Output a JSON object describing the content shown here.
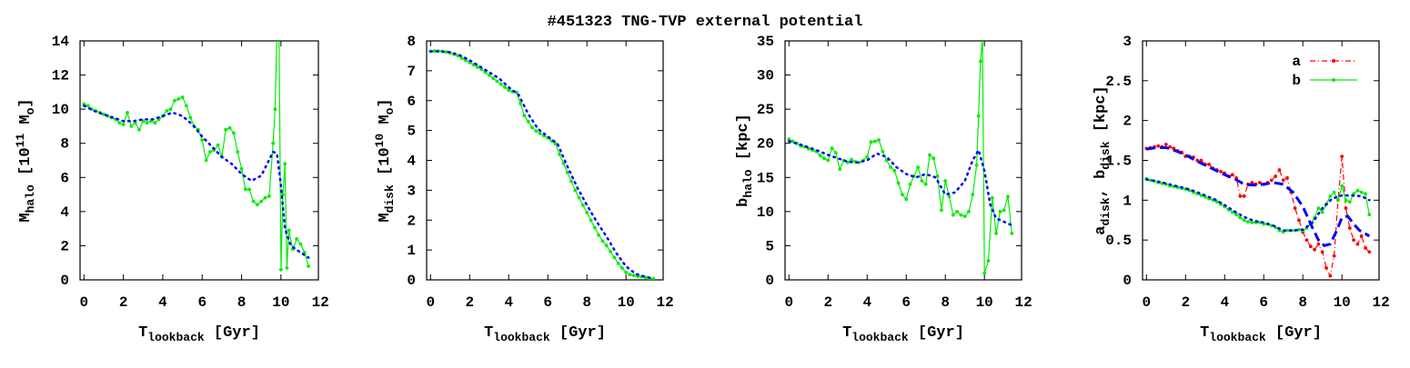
{
  "title": "#451323 TNG-TVP external potential",
  "chart_data": [
    {
      "type": "line",
      "xlabel": "T",
      "xlabel_sub": "lookback",
      "xlabel_unit": " [Gyr]",
      "ylabel": "M",
      "ylabel_sub": "halo",
      "ylabel_unit_pre": " [10",
      "ylabel_sup": "11",
      "ylabel_unit_post": " M",
      "ylabel_sub2": "o",
      "ylabel_close": "]",
      "xlim": [
        -0.2,
        11.9
      ],
      "ylim": [
        0,
        14
      ],
      "xticks": [
        "0",
        "2",
        "4",
        "6",
        "8",
        "10",
        "12"
      ],
      "yticks": [
        "0",
        "2",
        "4",
        "6",
        "8",
        "10",
        "12",
        "14"
      ],
      "series": [
        {
          "color": "#00ee00",
          "style": "solid-points",
          "x": [
            0,
            0.2,
            0.4,
            0.6,
            0.8,
            1.0,
            1.2,
            1.4,
            1.6,
            1.8,
            2.0,
            2.2,
            2.4,
            2.6,
            2.8,
            3.0,
            3.2,
            3.4,
            3.6,
            3.8,
            4.0,
            4.2,
            4.4,
            4.6,
            4.8,
            5.0,
            5.2,
            5.4,
            5.6,
            5.8,
            6.0,
            6.2,
            6.4,
            6.6,
            6.8,
            7.0,
            7.2,
            7.4,
            7.6,
            7.8,
            8.0,
            8.2,
            8.4,
            8.6,
            8.8,
            9.0,
            9.2,
            9.4,
            9.6,
            9.7,
            9.8,
            9.9,
            10.0,
            10.1,
            10.2,
            10.3,
            10.4,
            10.6,
            10.8,
            11.0,
            11.2,
            11.4
          ],
          "y": [
            10.3,
            10.2,
            10.0,
            9.9,
            9.8,
            9.7,
            9.6,
            9.5,
            9.4,
            9.2,
            9.1,
            9.8,
            9.0,
            9.2,
            8.8,
            9.3,
            9.2,
            9.3,
            9.2,
            9.4,
            9.6,
            9.9,
            10.0,
            10.5,
            10.6,
            10.7,
            10.2,
            9.5,
            9.0,
            8.8,
            8.2,
            7.0,
            7.5,
            7.6,
            7.9,
            7.2,
            8.8,
            8.9,
            8.6,
            7.5,
            6.5,
            5.3,
            5.3,
            4.6,
            4.4,
            4.6,
            4.8,
            4.9,
            8.0,
            10.0,
            14.5,
            14.5,
            0.6,
            5.0,
            6.8,
            0.7,
            2.9,
            1.8,
            2.4,
            2.1,
            1.6,
            0.8
          ]
        },
        {
          "color": "#0000ff",
          "style": "dotted",
          "x": [
            0,
            0.5,
            1.0,
            1.5,
            2.0,
            2.5,
            3.0,
            3.5,
            4.0,
            4.5,
            5.0,
            5.5,
            6.0,
            6.5,
            7.0,
            7.5,
            8.0,
            8.5,
            9.0,
            9.3,
            9.6,
            9.8,
            10.0,
            10.2,
            10.5,
            11.0,
            11.4
          ],
          "y": [
            10.2,
            9.9,
            9.7,
            9.5,
            9.3,
            9.3,
            9.4,
            9.4,
            9.6,
            9.8,
            9.6,
            9.1,
            8.4,
            7.8,
            7.2,
            6.8,
            6.2,
            5.8,
            6.1,
            6.8,
            7.5,
            7.4,
            5.5,
            3.0,
            2.0,
            1.6,
            1.3
          ]
        }
      ]
    },
    {
      "type": "line",
      "xlabel": "T",
      "xlabel_sub": "lookback",
      "xlabel_unit": " [Gyr]",
      "ylabel": "M",
      "ylabel_sub": "disk",
      "ylabel_unit_pre": " [10",
      "ylabel_sup": "10",
      "ylabel_unit_post": " M",
      "ylabel_sub2": "o",
      "ylabel_close": "]",
      "xlim": [
        -0.2,
        11.9
      ],
      "ylim": [
        0,
        8
      ],
      "xticks": [
        "0",
        "2",
        "4",
        "6",
        "8",
        "10",
        "12"
      ],
      "yticks": [
        "0",
        "1",
        "2",
        "3",
        "4",
        "5",
        "6",
        "7",
        "8"
      ],
      "series": [
        {
          "color": "#00ee00",
          "style": "solid-points",
          "x": [
            0,
            0.2,
            0.4,
            0.6,
            0.8,
            1.0,
            1.2,
            1.4,
            1.6,
            1.8,
            2.0,
            2.2,
            2.4,
            2.6,
            2.8,
            3.0,
            3.2,
            3.4,
            3.6,
            3.8,
            4.0,
            4.2,
            4.4,
            4.6,
            4.8,
            5.0,
            5.2,
            5.4,
            5.6,
            5.8,
            6.0,
            6.2,
            6.4,
            6.6,
            6.8,
            7.0,
            7.2,
            7.4,
            7.6,
            7.8,
            8.0,
            8.2,
            8.4,
            8.6,
            8.8,
            9.0,
            9.2,
            9.4,
            9.6,
            9.8,
            10.0,
            10.2,
            10.4,
            10.6,
            10.8,
            11.0,
            11.2,
            11.4
          ],
          "y": [
            7.65,
            7.66,
            7.66,
            7.65,
            7.63,
            7.6,
            7.55,
            7.5,
            7.42,
            7.35,
            7.28,
            7.2,
            7.12,
            7.05,
            6.95,
            6.85,
            6.75,
            6.65,
            6.55,
            6.45,
            6.35,
            6.3,
            6.28,
            5.9,
            5.5,
            5.3,
            5.1,
            4.98,
            4.9,
            4.82,
            4.75,
            4.65,
            4.55,
            4.2,
            3.9,
            3.6,
            3.3,
            3.0,
            2.75,
            2.5,
            2.25,
            2.0,
            1.75,
            1.5,
            1.3,
            1.15,
            0.95,
            0.75,
            0.55,
            0.4,
            0.25,
            0.18,
            0.15,
            0.12,
            0.1,
            0.08,
            0.05,
            0.04
          ]
        },
        {
          "color": "#0000ff",
          "style": "dotted",
          "x": [
            0,
            0.5,
            1.0,
            1.5,
            2.0,
            2.5,
            3.0,
            3.5,
            4.0,
            4.5,
            5.0,
            5.5,
            6.0,
            6.5,
            7.0,
            7.5,
            8.0,
            8.5,
            9.0,
            9.5,
            10.0,
            10.5,
            11.0,
            11.4
          ],
          "y": [
            7.65,
            7.65,
            7.62,
            7.52,
            7.35,
            7.15,
            6.95,
            6.75,
            6.45,
            6.2,
            5.55,
            5.05,
            4.8,
            4.55,
            3.8,
            3.1,
            2.5,
            1.95,
            1.45,
            0.9,
            0.45,
            0.2,
            0.1,
            0.05
          ]
        }
      ]
    },
    {
      "type": "line",
      "xlabel": "T",
      "xlabel_sub": "lookback",
      "xlabel_unit": " [Gyr]",
      "ylabel": "b",
      "ylabel_sub": "halo",
      "ylabel_unit_pre": " [kpc]",
      "xlim": [
        -0.2,
        11.9
      ],
      "ylim": [
        0,
        35
      ],
      "xticks": [
        "0",
        "2",
        "4",
        "6",
        "8",
        "10",
        "12"
      ],
      "yticks": [
        "0",
        "5",
        "10",
        "15",
        "20",
        "25",
        "30",
        "35"
      ],
      "series": [
        {
          "color": "#00ee00",
          "style": "solid-points",
          "x": [
            0,
            0.2,
            0.4,
            0.6,
            0.8,
            1.0,
            1.2,
            1.4,
            1.6,
            1.8,
            2.0,
            2.2,
            2.4,
            2.6,
            2.8,
            3.0,
            3.2,
            3.4,
            3.6,
            3.8,
            4.0,
            4.2,
            4.4,
            4.6,
            4.8,
            5.0,
            5.2,
            5.4,
            5.6,
            5.8,
            6.0,
            6.2,
            6.4,
            6.6,
            6.8,
            7.0,
            7.2,
            7.4,
            7.6,
            7.8,
            8.0,
            8.2,
            8.4,
            8.6,
            8.8,
            9.0,
            9.2,
            9.4,
            9.6,
            9.7,
            9.8,
            9.9,
            10.0,
            10.2,
            10.4,
            10.6,
            10.8,
            11.0,
            11.2,
            11.4
          ],
          "y": [
            20.6,
            20.3,
            20.0,
            19.6,
            19.5,
            19.2,
            19.0,
            18.8,
            18.2,
            17.8,
            17.5,
            19.3,
            18.6,
            16.2,
            17.5,
            17.2,
            17.6,
            17.3,
            17.2,
            17.5,
            18.0,
            20.2,
            20.3,
            20.5,
            18.8,
            17.5,
            16.5,
            16.0,
            14.2,
            12.5,
            11.8,
            14.0,
            15.2,
            16.5,
            14.5,
            14.0,
            18.3,
            17.8,
            15.2,
            10.2,
            14.5,
            12.2,
            9.5,
            10.0,
            9.5,
            9.3,
            10.0,
            12.5,
            16.8,
            24.0,
            32.0,
            35.5,
            1.0,
            2.8,
            12.0,
            6.8,
            10.0,
            10.2,
            12.2,
            6.8
          ]
        },
        {
          "color": "#0000ff",
          "style": "dotted",
          "x": [
            0,
            0.5,
            1.0,
            1.5,
            2.0,
            2.5,
            3.0,
            3.5,
            4.0,
            4.5,
            5.0,
            5.5,
            6.0,
            6.5,
            7.0,
            7.5,
            8.0,
            8.5,
            9.0,
            9.4,
            9.7,
            10.0,
            10.3,
            10.6,
            11.0,
            11.4
          ],
          "y": [
            20.3,
            19.9,
            19.4,
            18.9,
            18.3,
            17.8,
            17.3,
            17.2,
            17.5,
            18.5,
            18.0,
            16.5,
            15.5,
            15.0,
            15.5,
            15.0,
            12.5,
            12.8,
            14.5,
            17.5,
            19.0,
            16.0,
            11.0,
            9.0,
            8.5,
            8.0
          ]
        }
      ]
    },
    {
      "type": "line",
      "xlabel": "T",
      "xlabel_sub": "lookback",
      "xlabel_unit": " [Gyr]",
      "ylabel": "a",
      "ylabel_sub": "disk",
      "ylabel_mid": ", b",
      "ylabel_sub_b": "disk",
      "ylabel_unit_pre": " [kpc]",
      "xlim": [
        -0.2,
        11.9
      ],
      "ylim": [
        0,
        3
      ],
      "xticks": [
        "0",
        "2",
        "4",
        "6",
        "8",
        "10",
        "12"
      ],
      "yticks": [
        "0",
        "0.5",
        "1",
        "1.5",
        "2",
        "2.5",
        "3"
      ],
      "legend": {
        "position": "top-right",
        "entries": [
          "a",
          "b"
        ]
      },
      "series": [
        {
          "name": "a",
          "color": "#ff0000",
          "style": "dashdot-points",
          "x": [
            0,
            0.2,
            0.4,
            0.6,
            0.8,
            1.0,
            1.2,
            1.4,
            1.6,
            1.8,
            2.0,
            2.2,
            2.4,
            2.6,
            2.8,
            3.0,
            3.2,
            3.4,
            3.6,
            3.8,
            4.0,
            4.2,
            4.4,
            4.6,
            4.8,
            5.0,
            5.2,
            5.4,
            5.6,
            5.8,
            6.0,
            6.2,
            6.4,
            6.6,
            6.8,
            7.0,
            7.2,
            7.4,
            7.6,
            7.8,
            8.0,
            8.2,
            8.4,
            8.6,
            8.8,
            9.0,
            9.2,
            9.4,
            9.6,
            9.8,
            10.0,
            10.2,
            10.4,
            10.6,
            10.8,
            11.0,
            11.2,
            11.4
          ],
          "y": [
            1.65,
            1.66,
            1.67,
            1.68,
            1.67,
            1.7,
            1.67,
            1.65,
            1.62,
            1.6,
            1.55,
            1.55,
            1.54,
            1.5,
            1.5,
            1.45,
            1.45,
            1.4,
            1.38,
            1.36,
            1.34,
            1.3,
            1.32,
            1.28,
            1.05,
            1.05,
            1.2,
            1.22,
            1.2,
            1.22,
            1.2,
            1.22,
            1.25,
            1.3,
            1.38,
            1.25,
            1.28,
            1.1,
            0.9,
            0.75,
            0.6,
            0.5,
            0.42,
            0.38,
            0.45,
            0.35,
            0.15,
            0.05,
            0.3,
            1.0,
            1.55,
            0.9,
            0.65,
            0.5,
            0.45,
            0.55,
            0.4,
            0.35
          ]
        },
        {
          "name": "b",
          "color": "#00ee00",
          "style": "solid-points",
          "x": [
            0,
            0.2,
            0.4,
            0.6,
            0.8,
            1.0,
            1.2,
            1.4,
            1.6,
            1.8,
            2.0,
            2.2,
            2.4,
            2.6,
            2.8,
            3.0,
            3.2,
            3.4,
            3.6,
            3.8,
            4.0,
            4.2,
            4.4,
            4.6,
            4.8,
            5.0,
            5.2,
            5.4,
            5.6,
            5.8,
            6.0,
            6.2,
            6.4,
            6.6,
            6.8,
            7.0,
            7.2,
            7.4,
            7.6,
            7.8,
            8.0,
            8.2,
            8.4,
            8.6,
            8.8,
            9.0,
            9.2,
            9.4,
            9.6,
            9.8,
            10.0,
            10.2,
            10.4,
            10.6,
            10.8,
            11.0,
            11.2,
            11.4
          ],
          "y": [
            1.27,
            1.25,
            1.24,
            1.22,
            1.21,
            1.2,
            1.18,
            1.17,
            1.16,
            1.15,
            1.14,
            1.12,
            1.1,
            1.08,
            1.06,
            1.04,
            1.02,
            1.0,
            0.98,
            0.95,
            0.92,
            0.88,
            0.85,
            0.82,
            0.78,
            0.75,
            0.73,
            0.72,
            0.72,
            0.72,
            0.7,
            0.7,
            0.68,
            0.66,
            0.62,
            0.6,
            0.62,
            0.62,
            0.62,
            0.63,
            0.62,
            0.65,
            0.7,
            0.78,
            0.9,
            0.85,
            0.95,
            1.05,
            1.1,
            1.0,
            1.18,
            1.0,
            0.98,
            1.08,
            1.12,
            1.1,
            1.08,
            0.82
          ]
        },
        {
          "color": "#0000ff",
          "style": "dashed",
          "x": [
            0,
            0.5,
            1.0,
            1.5,
            2.0,
            2.5,
            3.0,
            3.5,
            4.0,
            4.5,
            5.0,
            5.5,
            6.0,
            6.5,
            7.0,
            7.5,
            8.0,
            8.5,
            8.8,
            9.1,
            9.4,
            9.7,
            10.0,
            10.3,
            10.6,
            10.9,
            11.2,
            11.4
          ],
          "y": [
            1.64,
            1.66,
            1.66,
            1.62,
            1.57,
            1.5,
            1.44,
            1.38,
            1.32,
            1.27,
            1.2,
            1.19,
            1.2,
            1.22,
            1.2,
            1.1,
            0.92,
            0.65,
            0.5,
            0.43,
            0.45,
            0.6,
            0.78,
            0.8,
            0.7,
            0.62,
            0.58,
            0.55
          ]
        },
        {
          "color": "#0000ff",
          "style": "dotted",
          "x": [
            0,
            0.5,
            1.0,
            1.5,
            2.0,
            2.5,
            3.0,
            3.5,
            4.0,
            4.5,
            5.0,
            5.5,
            6.0,
            6.5,
            7.0,
            7.5,
            8.0,
            8.5,
            9.0,
            9.5,
            10.0,
            10.5,
            11.0,
            11.4
          ],
          "y": [
            1.26,
            1.24,
            1.21,
            1.18,
            1.15,
            1.11,
            1.06,
            1.01,
            0.94,
            0.86,
            0.79,
            0.74,
            0.72,
            0.68,
            0.62,
            0.62,
            0.63,
            0.72,
            0.9,
            1.02,
            1.06,
            1.06,
            1.05,
            1.0
          ]
        }
      ]
    }
  ]
}
